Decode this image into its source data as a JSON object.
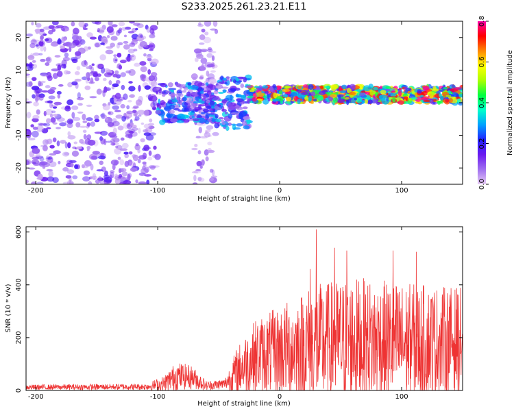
{
  "title": "S233.2025.261.23.21.E11",
  "chart_data": [
    {
      "type": "heatmap",
      "name": "spectrogram",
      "xlabel": "Height of straight line (km)",
      "ylabel": "Frequency (Hz)",
      "xlim": [
        -208,
        150
      ],
      "ylim": [
        -25,
        25
      ],
      "xticks": [
        -200,
        -100,
        0,
        100
      ],
      "yticks": [
        -20,
        -10,
        0,
        10,
        20
      ],
      "colorbar": {
        "label": "Normalized spectral amplitude",
        "range": [
          0,
          0.8
        ],
        "ticks": [
          "0.0",
          "0.2",
          "0.4",
          "0.6",
          "0.8"
        ],
        "colors": [
          "#e8ccf5",
          "#a070f0",
          "#6a1af0",
          "#2222ff",
          "#00a0ff",
          "#00ffcc",
          "#00ff40",
          "#aaff00",
          "#ffff00",
          "#ff8800",
          "#ff0000",
          "#ff00aa"
        ]
      },
      "features": [
        {
          "region": "noise",
          "x_range": [
            -208,
            -100
          ],
          "freq_range": [
            -25,
            25
          ],
          "amplitude": 0.12
        },
        {
          "region": "noise",
          "x_range": [
            -70,
            -52
          ],
          "freq_range": [
            -25,
            25
          ],
          "amplitude": 0.08
        },
        {
          "region": "signal",
          "x_range": [
            -100,
            -52
          ],
          "freq_center": 0,
          "freq_halfwidth": 6,
          "amplitude": 0.25
        },
        {
          "region": "signal",
          "x_range": [
            -52,
            -25
          ],
          "freq_center": 0,
          "freq_halfwidth": 8,
          "amplitude": 0.25
        },
        {
          "region": "signal",
          "x_range": [
            -25,
            150
          ],
          "freq_center": 2.5,
          "freq_halfwidth": 2.5,
          "amplitude": 0.6
        }
      ]
    },
    {
      "type": "line",
      "name": "snr",
      "xlabel": "Height of straight line (km)",
      "ylabel": "SNR (10 * v/v)",
      "xlim": [
        -208,
        150
      ],
      "ylim": [
        0,
        620
      ],
      "xticks": [
        -200,
        -100,
        0,
        100
      ],
      "yticks": [
        0,
        200,
        400,
        600
      ],
      "color": "#ee3333",
      "envelope": [
        {
          "x": -208,
          "base": 12,
          "amp": 10
        },
        {
          "x": -110,
          "base": 14,
          "amp": 12
        },
        {
          "x": -95,
          "base": 25,
          "amp": 30
        },
        {
          "x": -85,
          "base": 55,
          "amp": 55
        },
        {
          "x": -72,
          "base": 50,
          "amp": 45
        },
        {
          "x": -60,
          "base": 18,
          "amp": 18
        },
        {
          "x": -45,
          "base": 25,
          "amp": 20
        },
        {
          "x": -35,
          "base": 75,
          "amp": 90
        },
        {
          "x": -20,
          "base": 130,
          "amp": 140
        },
        {
          "x": 0,
          "base": 150,
          "amp": 170
        },
        {
          "x": 25,
          "base": 170,
          "amp": 230
        },
        {
          "x": 60,
          "base": 190,
          "amp": 240
        },
        {
          "x": 100,
          "base": 180,
          "amp": 230
        },
        {
          "x": 150,
          "base": 190,
          "amp": 200
        }
      ],
      "peaks": [
        {
          "x": 30,
          "y": 610
        },
        {
          "x": 45,
          "y": 540
        },
        {
          "x": 55,
          "y": 530
        },
        {
          "x": 93,
          "y": 530
        },
        {
          "x": 112,
          "y": 525
        },
        {
          "x": 25,
          "y": 460
        }
      ]
    }
  ]
}
